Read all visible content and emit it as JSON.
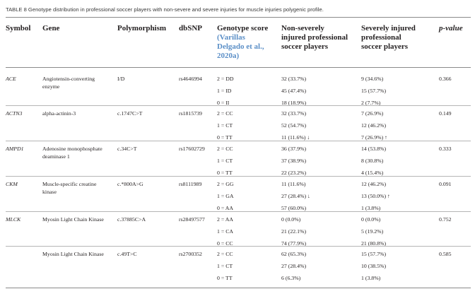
{
  "caption": "TABLE 8 Genotype distribution in professional soccer players with non-severe and severe injuries for muscle injuries polygenic profile.",
  "headers": {
    "symbol": "Symbol",
    "gene": "Gene",
    "polymorphism": "Polymorphism",
    "dbsnp": "dbSNP",
    "score_1": "Genotype score",
    "score_cite_1": "(Varillas",
    "score_cite_2": "Delgado et al.,",
    "score_cite_3": "2020a)",
    "nonsev_1": "Non-severely",
    "nonsev_2": "injured professional",
    "nonsev_3": "soccer players",
    "sev_1": "Severely injured",
    "sev_2": "professional",
    "sev_3": "soccer players",
    "pvalue": "p-value"
  },
  "groups": [
    {
      "symbol": "ACE",
      "gene": "Angiotensin-converting enzyme",
      "polymorphism": "I/D",
      "dbsnp": "rs4646994",
      "p": "0.366",
      "rows": [
        {
          "score": "2 = DD",
          "nonsev": "32 (33.7%)",
          "sev": "9 (34.6%)"
        },
        {
          "score": "1 = ID",
          "nonsev": "45 (47.4%)",
          "sev": "15 (57.7%)"
        },
        {
          "score": "0 = II",
          "nonsev": "18 (18.9%)",
          "sev": "2 (7.7%)"
        }
      ]
    },
    {
      "symbol": "ACTN3",
      "gene": "alpha-actinin-3",
      "polymorphism": "c.1747C>T",
      "dbsnp": "rs1815739",
      "p": "0.149",
      "rows": [
        {
          "score": "2 = CC",
          "nonsev": "32 (33.7%)",
          "sev": "7 (26.9%)"
        },
        {
          "score": "1 = CT",
          "nonsev": "52 (54.7%)",
          "sev": "12 (46.2%)"
        },
        {
          "score": "0 = TT",
          "nonsev": "11 (11.6%) ↓",
          "sev": "7 (26.9%) ↑"
        }
      ]
    },
    {
      "symbol": "AMPD1",
      "gene": "Adenosine monophosphate deaminase 1",
      "polymorphism": "c.34C>T",
      "dbsnp": "rs17602729",
      "p": "0.333",
      "rows": [
        {
          "score": "2 = CC",
          "nonsev": "36 (37.9%)",
          "sev": "14 (53.8%)"
        },
        {
          "score": "1 = CT",
          "nonsev": "37 (38.9%)",
          "sev": "8 (30.8%)"
        },
        {
          "score": "0 = TT",
          "nonsev": "22 (23.2%)",
          "sev": "4 (15.4%)"
        }
      ]
    },
    {
      "symbol": "CKM",
      "gene": "Muscle-specific creatine kinase",
      "polymorphism": "c.*800A>G",
      "dbsnp": "rs8111989",
      "p": "0.091",
      "rows": [
        {
          "score": "2 = GG",
          "nonsev": "11 (11.6%)",
          "sev": "12 (46.2%)"
        },
        {
          "score": "1 = GA",
          "nonsev": "27 (28.4%) ↓",
          "sev": "13 (50.0%) ↑"
        },
        {
          "score": "0 = AA",
          "nonsev": "57 (60.0%)",
          "sev": "1 (3.8%)"
        }
      ]
    },
    {
      "symbol": "MLCK",
      "gene": "Myosin Light Chain Kinase",
      "polymorphism": "c.37885C>A",
      "dbsnp": "rs28497577",
      "p": "0.752",
      "rows": [
        {
          "score": "2 = AA",
          "nonsev": "0 (0.0%)",
          "sev": "0 (0.0%)"
        },
        {
          "score": "1 = CA",
          "nonsev": "21 (22.1%)",
          "sev": "5 (19.2%)"
        },
        {
          "score": "0 = CC",
          "nonsev": "74 (77.9%)",
          "sev": "21 (80.8%)"
        }
      ]
    },
    {
      "symbol": "",
      "gene": "Myosin Light Chain Kinase",
      "polymorphism": "c.49T>C",
      "dbsnp": "rs2700352",
      "p": "0.585",
      "rows": [
        {
          "score": "2 = CC",
          "nonsev": "62 (65.3%)",
          "sev": "15 (57.7%)"
        },
        {
          "score": "1 = CT",
          "nonsev": "27 (28.4%)",
          "sev": "10 (38.5%)"
        },
        {
          "score": "0 = TT",
          "nonsev": "6 (6.3%)",
          "sev": "1 (3.8%)"
        }
      ]
    }
  ]
}
